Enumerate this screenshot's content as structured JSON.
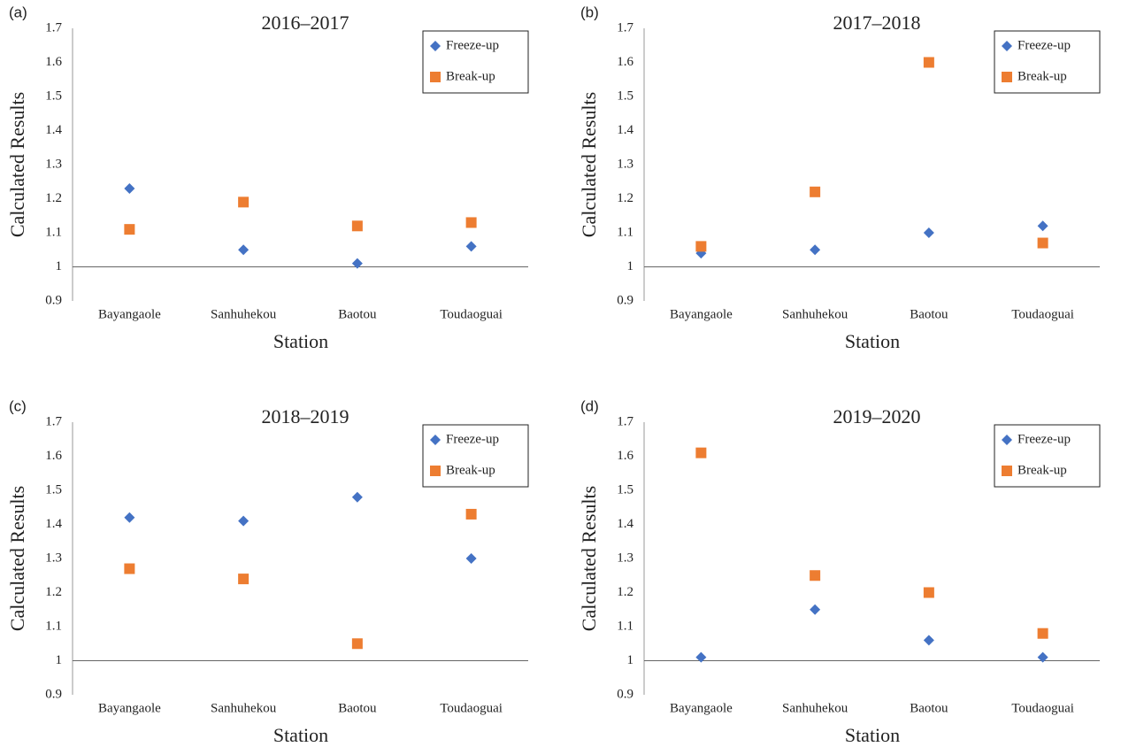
{
  "chart_data": [
    {
      "type": "scatter",
      "panel": "(a)",
      "title": "2016–2017",
      "x_label": "Station",
      "y_label": "Calculated Results",
      "categories": [
        "Bayangaole",
        "Sanhuhekou",
        "Baotou",
        "Toudaoguai"
      ],
      "series": [
        {
          "name": "Freeze-up",
          "color": "#4472c4",
          "marker": "diamond",
          "values": [
            1.23,
            1.05,
            1.01,
            1.06
          ]
        },
        {
          "name": "Break-up",
          "color": "#ed7d31",
          "marker": "square",
          "values": [
            1.11,
            1.19,
            1.12,
            1.13
          ]
        }
      ],
      "ylim": [
        0.9,
        1.7
      ],
      "yticks": [
        0.9,
        1,
        1.1,
        1.2,
        1.3,
        1.4,
        1.5,
        1.6,
        1.7
      ],
      "x_axis_crosses": 1,
      "legend": "upper right"
    },
    {
      "type": "scatter",
      "panel": "(b)",
      "title": "2017–2018",
      "x_label": "Station",
      "y_label": "Calculated Results",
      "categories": [
        "Bayangaole",
        "Sanhuhekou",
        "Baotou",
        "Toudaoguai"
      ],
      "series": [
        {
          "name": "Freeze-up",
          "color": "#4472c4",
          "marker": "diamond",
          "values": [
            1.04,
            1.05,
            1.1,
            1.12
          ]
        },
        {
          "name": "Break-up",
          "color": "#ed7d31",
          "marker": "square",
          "values": [
            1.06,
            1.22,
            1.6,
            1.07
          ]
        }
      ],
      "ylim": [
        0.9,
        1.7
      ],
      "yticks": [
        0.9,
        1,
        1.1,
        1.2,
        1.3,
        1.4,
        1.5,
        1.6,
        1.7
      ],
      "x_axis_crosses": 1,
      "legend": "upper right"
    },
    {
      "type": "scatter",
      "panel": "(c)",
      "title": "2018–2019",
      "x_label": "Station",
      "y_label": "Calculated Results",
      "categories": [
        "Bayangaole",
        "Sanhuhekou",
        "Baotou",
        "Toudaoguai"
      ],
      "series": [
        {
          "name": "Freeze-up",
          "color": "#4472c4",
          "marker": "diamond",
          "values": [
            1.42,
            1.41,
            1.48,
            1.3
          ]
        },
        {
          "name": "Break-up",
          "color": "#ed7d31",
          "marker": "square",
          "values": [
            1.27,
            1.24,
            1.05,
            1.43
          ]
        }
      ],
      "ylim": [
        0.9,
        1.7
      ],
      "yticks": [
        0.9,
        1,
        1.1,
        1.2,
        1.3,
        1.4,
        1.5,
        1.6,
        1.7
      ],
      "x_axis_crosses": 1,
      "legend": "upper right"
    },
    {
      "type": "scatter",
      "panel": "(d)",
      "title": "2019–2020",
      "x_label": "Station",
      "y_label": "Calculated Results",
      "categories": [
        "Bayangaole",
        "Sanhuhekou",
        "Baotou",
        "Toudaoguai"
      ],
      "series": [
        {
          "name": "Freeze-up",
          "color": "#4472c4",
          "marker": "diamond",
          "values": [
            1.01,
            1.15,
            1.06,
            1.01
          ]
        },
        {
          "name": "Break-up",
          "color": "#ed7d31",
          "marker": "square",
          "values": [
            1.61,
            1.25,
            1.2,
            1.08
          ]
        }
      ],
      "ylim": [
        0.9,
        1.7
      ],
      "yticks": [
        0.9,
        1,
        1.1,
        1.2,
        1.3,
        1.4,
        1.5,
        1.6,
        1.7
      ],
      "x_axis_crosses": 1,
      "legend": "upper right"
    }
  ]
}
